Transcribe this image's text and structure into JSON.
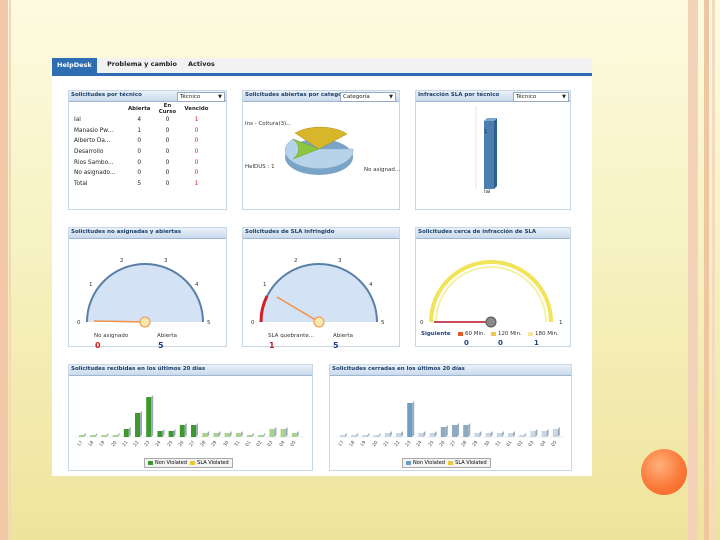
{
  "colors": {
    "nav_active": "#2f6db3",
    "red": "#d21f1f",
    "blue": "#1f3f8c",
    "green": "#3c9a2c",
    "yellow": "#e8c93a",
    "dot": "#f7793a"
  },
  "nav": {
    "tabs": [
      "HelpDesk",
      "Problema y cambio",
      "Activos"
    ]
  },
  "panel_tech": {
    "title": "Solicitudes por técnico",
    "select": "Técnico",
    "headers": [
      "",
      "Abierta",
      "En Curso",
      "Vencido"
    ],
    "rows": [
      [
        "Ial",
        "4",
        "0",
        "1"
      ],
      [
        "Manasio Pw...",
        "1",
        "0",
        "0"
      ],
      [
        "Alberto Da...",
        "0",
        "0",
        "0"
      ],
      [
        "Desarrollo",
        "0",
        "0",
        "0"
      ],
      [
        "Rios Sambo...",
        "0",
        "0",
        "0"
      ],
      [
        "No asignado...",
        "0",
        "0",
        "0"
      ],
      [
        "Total",
        "5",
        "0",
        "1"
      ]
    ]
  },
  "panel_cat": {
    "title": "Solicitudes abiertas por categoría",
    "select": "Categoría",
    "labels": [
      "Ins - Coltura(3)...",
      "HelDUS : 1",
      "No asignad..."
    ]
  },
  "panel_sla_tech": {
    "title": "Infracción SLA por técnico",
    "select": "Técnico",
    "bar_label": "Ial",
    "bar_value": "1"
  },
  "panel_unassigned": {
    "title": "Solicitudes no asignadas y abiertas",
    "ticks": [
      "0",
      "1",
      "2",
      "3",
      "4",
      "5"
    ],
    "labels": [
      "No asignado",
      "Abierta"
    ],
    "values": [
      "0",
      "5"
    ],
    "needle_value": 0
  },
  "panel_sla_breach": {
    "title": "Solicitudes de SLA infringido",
    "ticks": [
      "0",
      "1",
      "2",
      "3",
      "4",
      "5"
    ],
    "labels": [
      "SLA quebrante...",
      "Abierta"
    ],
    "values": [
      "1",
      "5"
    ],
    "needle_value": 1
  },
  "panel_near_sla": {
    "title": "Solicitudes cerca de infracción de SLA",
    "ticks": [
      "0",
      "1"
    ],
    "next_label": "Siguiente",
    "legend": [
      "60 Min.",
      "120 Min.",
      "180 Min."
    ],
    "values": [
      "0",
      "0",
      "1"
    ]
  },
  "panel_received": {
    "title": "Solicitudes recibidas en los últimos 20 días",
    "legend": [
      "Non Violated",
      "SLA Violated"
    ],
    "days": [
      "17",
      "18",
      "19",
      "20",
      "21",
      "22",
      "23",
      "24",
      "25",
      "26",
      "27",
      "28",
      "29",
      "30",
      "31",
      "01",
      "02",
      "03",
      "04",
      "05"
    ]
  },
  "panel_closed": {
    "title": "Solicitudes cerradas en los últimos 20 días",
    "legend": [
      "Non Violated",
      "SLA Violated"
    ],
    "days": [
      "17",
      "18",
      "19",
      "20",
      "21",
      "22",
      "23",
      "24",
      "25",
      "26",
      "27",
      "28",
      "29",
      "30",
      "31",
      "01",
      "02",
      "03",
      "04",
      "05"
    ]
  }
}
